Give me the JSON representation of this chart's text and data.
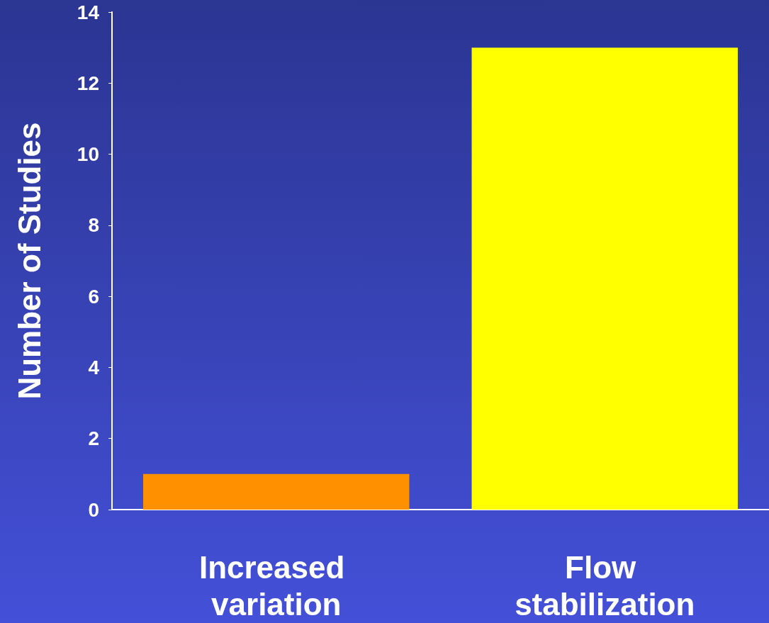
{
  "chart_data": {
    "type": "bar",
    "ylabel": "Number of Studies",
    "categories": [
      "Increased variation",
      "Flow stabilization"
    ],
    "values": [
      1,
      13
    ],
    "colors": [
      "#ff9000",
      "#ffff00"
    ],
    "ylim": [
      0,
      14
    ],
    "yticks": [
      0,
      2,
      4,
      6,
      8,
      10,
      12,
      14
    ],
    "grid": false
  }
}
